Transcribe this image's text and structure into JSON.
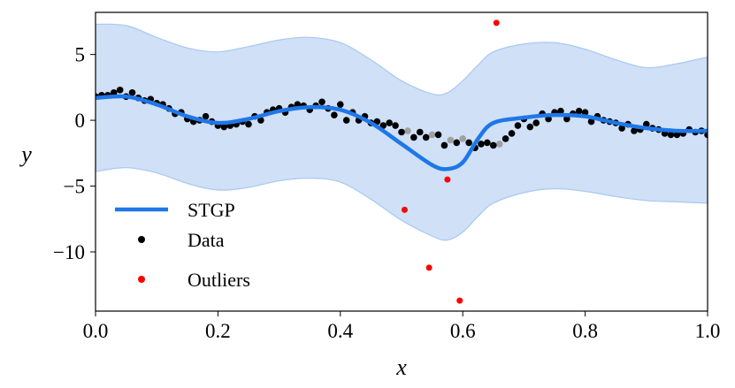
{
  "chart_data": {
    "type": "line",
    "xlabel": "x",
    "ylabel": "y",
    "xlim": [
      0.0,
      1.0
    ],
    "ylim": [
      -14.5,
      8.2
    ],
    "xticks": [
      "0.0",
      "0.2",
      "0.4",
      "0.6",
      "0.8",
      "1.0"
    ],
    "xtick_values": [
      0,
      0.2,
      0.4,
      0.6,
      0.8,
      1.0
    ],
    "yticks": [
      "5",
      "0",
      "−5",
      "−10"
    ],
    "ytick_values": [
      5,
      0,
      -5,
      -10
    ],
    "grid": false,
    "legend_position": "lower-left",
    "legend": [
      "STGP",
      "Data",
      "Outliers"
    ],
    "colors": {
      "mean": "#1f77e8",
      "band": "#cfe0f7",
      "band_edge": "#a9c8f0",
      "data": "#000000",
      "masked_data": "#a0a0a0",
      "outliers": "#ff0000"
    },
    "stgp_mean": {
      "name": "STGP",
      "x": [
        0,
        0.05,
        0.1,
        0.15,
        0.2,
        0.25,
        0.3,
        0.35,
        0.4,
        0.45,
        0.5,
        0.55,
        0.575,
        0.6,
        0.625,
        0.65,
        0.7,
        0.75,
        0.8,
        0.85,
        0.9,
        0.95,
        1.0
      ],
      "y": [
        1.7,
        1.8,
        1.2,
        0.3,
        -0.2,
        0.1,
        0.7,
        1.0,
        0.8,
        -0.2,
        -1.8,
        -3.4,
        -3.7,
        -3.2,
        -1.4,
        -0.2,
        0.2,
        0.4,
        0.3,
        -0.2,
        -0.6,
        -0.8,
        -0.8
      ],
      "upper": [
        7.3,
        7.2,
        6.3,
        5.5,
        5.2,
        5.6,
        6.1,
        6.3,
        5.9,
        4.6,
        3.0,
        2.0,
        2.1,
        3.0,
        4.2,
        5.2,
        5.8,
        5.9,
        5.4,
        4.6,
        4.0,
        4.3,
        4.8
      ],
      "lower": [
        -3.9,
        -3.6,
        -4.0,
        -4.8,
        -5.3,
        -5.1,
        -4.6,
        -4.4,
        -4.7,
        -6.0,
        -7.6,
        -8.8,
        -9.1,
        -8.5,
        -7.3,
        -6.3,
        -5.5,
        -5.2,
        -5.4,
        -5.8,
        -6.1,
        -6.2,
        -6.3
      ]
    },
    "data": {
      "name": "Data",
      "x": [
        0,
        0.01,
        0.02,
        0.03,
        0.04,
        0.05,
        0.06,
        0.07,
        0.08,
        0.09,
        0.1,
        0.11,
        0.12,
        0.13,
        0.14,
        0.15,
        0.16,
        0.17,
        0.18,
        0.19,
        0.2,
        0.21,
        0.22,
        0.23,
        0.24,
        0.25,
        0.26,
        0.27,
        0.28,
        0.29,
        0.3,
        0.31,
        0.32,
        0.33,
        0.34,
        0.35,
        0.36,
        0.37,
        0.38,
        0.39,
        0.4,
        0.41,
        0.42,
        0.43,
        0.44,
        0.45,
        0.46,
        0.47,
        0.48,
        0.49,
        0.5,
        0.52,
        0.53,
        0.54,
        0.56,
        0.57,
        0.59,
        0.61,
        0.62,
        0.63,
        0.64,
        0.65,
        0.67,
        0.68,
        0.69,
        0.7,
        0.71,
        0.72,
        0.73,
        0.74,
        0.75,
        0.76,
        0.77,
        0.78,
        0.79,
        0.8,
        0.81,
        0.82,
        0.83,
        0.84,
        0.85,
        0.86,
        0.87,
        0.88,
        0.89,
        0.9,
        0.91,
        0.92,
        0.93,
        0.94,
        0.95,
        0.96,
        0.97,
        0.98,
        0.99,
        1.0
      ],
      "y": [
        1.8,
        1.9,
        1.9,
        2.1,
        2.3,
        1.8,
        2.1,
        1.7,
        1.5,
        1.6,
        1.3,
        1.2,
        0.9,
        0.5,
        0.6,
        0.1,
        -0.1,
        0.0,
        0.3,
        -0.1,
        -0.4,
        -0.5,
        -0.4,
        -0.3,
        -0.1,
        -0.3,
        0.3,
        0.0,
        0.6,
        0.8,
        0.9,
        0.6,
        1.0,
        1.2,
        1.1,
        0.8,
        1.1,
        1.4,
        0.9,
        0.4,
        1.2,
        0.0,
        0.6,
        0.0,
        0.3,
        -0.2,
        -0.1,
        -0.4,
        -0.2,
        -0.4,
        -0.9,
        -1.3,
        -0.9,
        -1.3,
        -1.1,
        -1.9,
        -1.7,
        -1.7,
        -2.1,
        -1.8,
        -1.7,
        -1.9,
        -1.4,
        -1.0,
        -0.4,
        0.1,
        -0.5,
        -0.2,
        0.5,
        0.1,
        0.6,
        0.7,
        0.1,
        0.5,
        0.7,
        0.6,
        -0.1,
        0.3,
        0.0,
        -0.1,
        -0.2,
        -0.6,
        -0.3,
        -0.8,
        -0.7,
        -0.3,
        -0.6,
        -0.7,
        -1.0,
        -1.1,
        -1.1,
        -1.0,
        -0.7,
        -0.9,
        -0.8,
        -1.1
      ]
    },
    "masked_data": {
      "x": [
        0.51,
        0.55,
        0.58,
        0.6,
        0.66
      ],
      "y": [
        -0.8,
        -1.1,
        -1.5,
        -1.4,
        -1.8
      ]
    },
    "outliers": {
      "name": "Outliers",
      "x": [
        0.505,
        0.545,
        0.575,
        0.595,
        0.655
      ],
      "y": [
        -6.8,
        -11.2,
        -4.5,
        -13.7,
        7.4
      ]
    }
  }
}
